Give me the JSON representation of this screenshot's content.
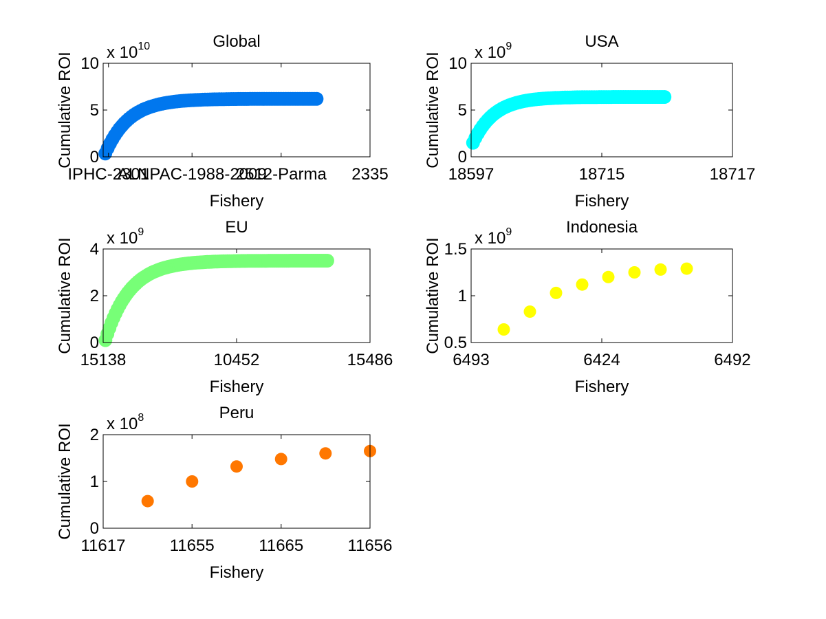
{
  "chart_data": [
    {
      "type": "scatter",
      "title": "Global",
      "xlabel": "Fishery",
      "ylabel": "Cumulative ROI",
      "x_tick_labels": [
        "IPHC-2301",
        "ALNPAC-1988-2009",
        "2512-Parma",
        "2335"
      ],
      "y_ticks": [
        0,
        5,
        10
      ],
      "y_tick_labels": [
        "0",
        "5",
        "10"
      ],
      "ylim": [
        0,
        10
      ],
      "y_exponent_base": "x 10",
      "y_exponent": "10",
      "marker_color": "#0077ee",
      "series_count_points": 90,
      "curve": {
        "y_start": 0.35,
        "y_end": 6.2,
        "shape": "saturating"
      },
      "x_fraction_extent": [
        0.0,
        0.8
      ]
    },
    {
      "type": "scatter",
      "title": "USA",
      "xlabel": "Fishery",
      "ylabel": "Cumulative ROI",
      "x_tick_labels": [
        "18597",
        "18715",
        "18717"
      ],
      "y_ticks": [
        0,
        5,
        10
      ],
      "y_tick_labels": [
        "0",
        "5",
        "10"
      ],
      "ylim": [
        0,
        10
      ],
      "y_exponent_base": "x 10",
      "y_exponent": "9",
      "marker_color": "#00ffff",
      "series_count_points": 80,
      "curve": {
        "y_start": 1.5,
        "y_end": 6.4,
        "shape": "saturating"
      },
      "x_fraction_extent": [
        0.0,
        0.74
      ]
    },
    {
      "type": "scatter",
      "title": "EU",
      "xlabel": "Fishery",
      "ylabel": "Cumulative ROI",
      "x_tick_labels": [
        "15138",
        "10452",
        "15486"
      ],
      "y_ticks": [
        0,
        2,
        4
      ],
      "y_tick_labels": [
        "0",
        "2",
        "4"
      ],
      "ylim": [
        0,
        4
      ],
      "y_exponent_base": "x 10",
      "y_exponent": "9",
      "marker_color": "#77ff77",
      "series_count_points": 110,
      "curve": {
        "y_start": 0.1,
        "y_end": 3.5,
        "shape": "saturating"
      },
      "x_fraction_extent": [
        0.0,
        0.84
      ]
    },
    {
      "type": "scatter",
      "title": "Indonesia",
      "xlabel": "Fishery",
      "ylabel": "Cumulative ROI",
      "x_tick_labels": [
        "6493",
        "6424",
        "6492"
      ],
      "y_ticks": [
        0.5,
        1,
        1.5
      ],
      "y_tick_labels": [
        "0.5",
        "1",
        "1.5"
      ],
      "ylim": [
        0.5,
        1.5
      ],
      "y_exponent_base": "x 10",
      "y_exponent": "9",
      "marker_color": "#ffff00",
      "points": [
        {
          "xf": 0.125,
          "y": 0.64
        },
        {
          "xf": 0.225,
          "y": 0.83
        },
        {
          "xf": 0.325,
          "y": 1.03
        },
        {
          "xf": 0.425,
          "y": 1.12
        },
        {
          "xf": 0.525,
          "y": 1.2
        },
        {
          "xf": 0.625,
          "y": 1.25
        },
        {
          "xf": 0.725,
          "y": 1.28
        },
        {
          "xf": 0.825,
          "y": 1.29
        }
      ]
    },
    {
      "type": "scatter",
      "title": "Peru",
      "xlabel": "Fishery",
      "ylabel": "Cumulative ROI",
      "x_tick_labels": [
        "11617",
        "11655",
        "11665",
        "11656"
      ],
      "y_ticks": [
        0,
        1,
        2
      ],
      "y_tick_labels": [
        "0",
        "1",
        "2"
      ],
      "ylim": [
        0,
        2
      ],
      "y_exponent_base": "x 10",
      "y_exponent": "8",
      "marker_color": "#ff7700",
      "points": [
        {
          "xf": 0.1667,
          "y": 0.58
        },
        {
          "xf": 0.3333,
          "y": 1.0
        },
        {
          "xf": 0.5,
          "y": 1.32
        },
        {
          "xf": 0.6667,
          "y": 1.48
        },
        {
          "xf": 0.8333,
          "y": 1.6
        },
        {
          "xf": 1.0,
          "y": 1.65
        }
      ]
    }
  ]
}
